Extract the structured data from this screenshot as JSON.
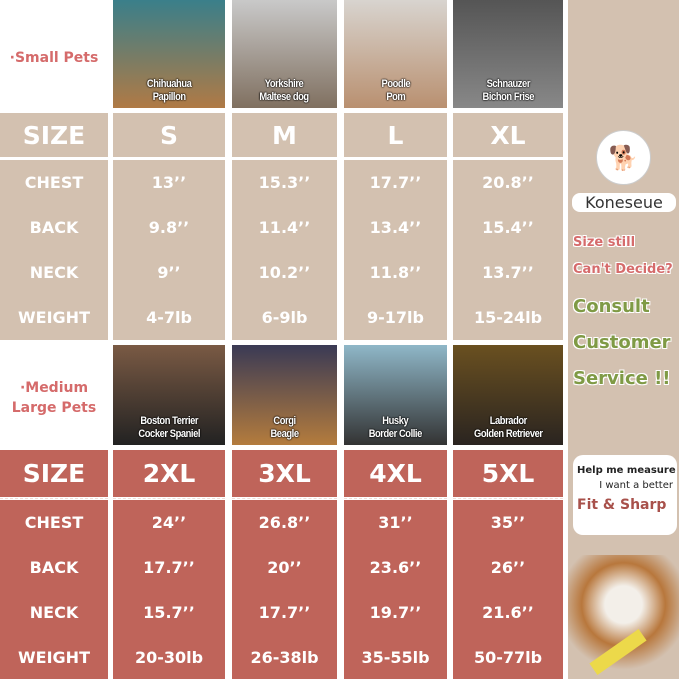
{
  "small": {
    "label": "·Small Pets",
    "breeds": [
      "Chihuahua\nPapillon",
      "Yorkshire\nMaltese dog",
      "Poodle\nPom",
      "Schnauzer\nBichon Frise"
    ],
    "size_label": "SIZE",
    "sizes": [
      "S",
      "M",
      "L",
      "XL"
    ],
    "rows": [
      {
        "label": "CHEST",
        "values": [
          "13’’",
          "15.3’’",
          "17.7’’",
          "20.8’’"
        ]
      },
      {
        "label": "BACK",
        "values": [
          "9.8’’",
          "11.4’’",
          "13.4’’",
          "15.4’’"
        ]
      },
      {
        "label": "NECK",
        "values": [
          "9’’",
          "10.2’’",
          "11.8’’",
          "13.7’’"
        ]
      },
      {
        "label": "WEIGHT",
        "values": [
          "4-7lb",
          "6-9lb",
          "9-17lb",
          "15-24lb"
        ]
      }
    ]
  },
  "large": {
    "label": "·Medium\nLarge Pets",
    "breeds": [
      "Boston Terrier\nCocker Spaniel",
      "Corgi\nBeagle",
      "Husky\nBorder Collie",
      "Labrador\nGolden Retriever"
    ],
    "size_label": "SIZE",
    "sizes": [
      "2XL",
      "3XL",
      "4XL",
      "5XL"
    ],
    "rows": [
      {
        "label": "CHEST",
        "values": [
          "24’’",
          "26.8’’",
          "31’’",
          "35’’"
        ]
      },
      {
        "label": "BACK",
        "values": [
          "17.7’’",
          "20’’",
          "23.6’’",
          "26’’"
        ]
      },
      {
        "label": "NECK",
        "values": [
          "15.7’’",
          "17.7’’",
          "19.7’’",
          "21.6’’"
        ]
      },
      {
        "label": "WEIGHT",
        "values": [
          "20-30lb",
          "26-38lb",
          "35-55lb",
          "50-77lb"
        ]
      }
    ]
  },
  "side": {
    "brand": "Koneseue",
    "q1": "Size still",
    "q2": "Can't Decide?",
    "c1": "Consult",
    "c2": "Customer",
    "c3": "Service !!",
    "bubble1": "Help me measure",
    "bubble2": "I want a better",
    "bubble3": "Fit & Sharp"
  },
  "colors": {
    "beige": "#d3c1b0",
    "red": "#bf645a",
    "pink_text": "#d56b6b",
    "green_text": "#7f9a45"
  }
}
